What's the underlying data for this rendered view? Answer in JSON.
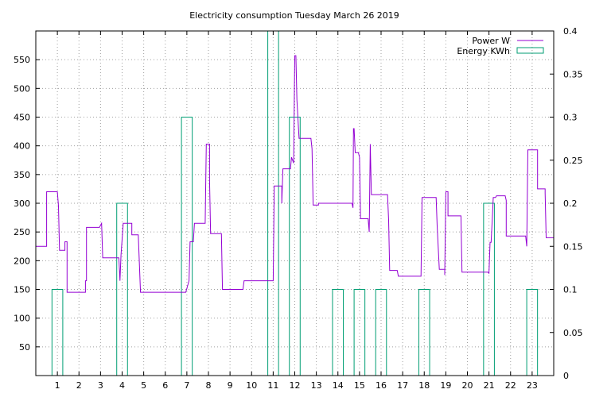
{
  "chart_data": {
    "type": "line",
    "title": "Electricity consumption Tuesday March 26 2019",
    "x_ticks": [
      "1",
      "2",
      "3",
      "4",
      "5",
      "6",
      "7",
      "8",
      "9",
      "10",
      "11",
      "12",
      "13",
      "14",
      "15",
      "16",
      "17",
      "18",
      "19",
      "20",
      "21",
      "22",
      "23"
    ],
    "xlim": [
      0,
      24
    ],
    "y_left": {
      "ylim": [
        0,
        600
      ],
      "ticks": [
        50,
        100,
        150,
        200,
        250,
        300,
        350,
        400,
        450,
        500,
        550
      ]
    },
    "y_right": {
      "ylim": [
        0,
        0.4
      ],
      "ticks": [
        "0",
        "0.05",
        "0.1",
        "0.15",
        "0.2",
        "0.25",
        "0.3",
        "0.35",
        "0.4"
      ]
    },
    "grid": true,
    "legend_position": "top-right",
    "colors": {
      "power": "#9400d3",
      "energy": "#009e73"
    },
    "series": [
      {
        "name": "Power W",
        "axis": "left",
        "style": "step-line",
        "points": [
          [
            0,
            225
          ],
          [
            0.5,
            225
          ],
          [
            0.5,
            320
          ],
          [
            1.0,
            320
          ],
          [
            1.05,
            295
          ],
          [
            1.1,
            218
          ],
          [
            1.35,
            218
          ],
          [
            1.35,
            233
          ],
          [
            1.45,
            233
          ],
          [
            1.45,
            145
          ],
          [
            2.3,
            145
          ],
          [
            2.3,
            165
          ],
          [
            2.35,
            165
          ],
          [
            2.35,
            258
          ],
          [
            2.95,
            258
          ],
          [
            3.05,
            265
          ],
          [
            3.1,
            205
          ],
          [
            3.85,
            205
          ],
          [
            3.9,
            165
          ],
          [
            3.95,
            210
          ],
          [
            4.05,
            265
          ],
          [
            4.45,
            265
          ],
          [
            4.45,
            245
          ],
          [
            4.75,
            245
          ],
          [
            4.85,
            145
          ],
          [
            6.95,
            145
          ],
          [
            7.1,
            165
          ],
          [
            7.15,
            233
          ],
          [
            7.3,
            233
          ],
          [
            7.35,
            265
          ],
          [
            7.85,
            265
          ],
          [
            7.9,
            403
          ],
          [
            8.05,
            403
          ],
          [
            8.05,
            340
          ],
          [
            8.1,
            247
          ],
          [
            8.6,
            247
          ],
          [
            8.65,
            150
          ],
          [
            9.6,
            150
          ],
          [
            9.65,
            165
          ],
          [
            11.0,
            165
          ],
          [
            11.05,
            330
          ],
          [
            11.4,
            330
          ],
          [
            11.4,
            300
          ],
          [
            11.45,
            360
          ],
          [
            11.8,
            360
          ],
          [
            11.85,
            380
          ],
          [
            11.95,
            370
          ],
          [
            12.0,
            557
          ],
          [
            12.05,
            557
          ],
          [
            12.1,
            480
          ],
          [
            12.2,
            413
          ],
          [
            12.75,
            413
          ],
          [
            12.8,
            395
          ],
          [
            12.85,
            297
          ],
          [
            13.1,
            297
          ],
          [
            13.1,
            300
          ],
          [
            14.65,
            300
          ],
          [
            14.7,
            292
          ],
          [
            14.72,
            430
          ],
          [
            14.75,
            430
          ],
          [
            14.8,
            388
          ],
          [
            14.95,
            388
          ],
          [
            15.0,
            380
          ],
          [
            15.05,
            273
          ],
          [
            15.4,
            273
          ],
          [
            15.45,
            250
          ],
          [
            15.5,
            403
          ],
          [
            15.55,
            315
          ],
          [
            16.3,
            315
          ],
          [
            16.35,
            270
          ],
          [
            16.4,
            183
          ],
          [
            16.75,
            183
          ],
          [
            16.8,
            173
          ],
          [
            17.85,
            173
          ],
          [
            17.9,
            310
          ],
          [
            18.55,
            310
          ],
          [
            18.6,
            260
          ],
          [
            18.7,
            185
          ],
          [
            18.95,
            185
          ],
          [
            18.95,
            175
          ],
          [
            19.0,
            320
          ],
          [
            19.1,
            320
          ],
          [
            19.1,
            278
          ],
          [
            19.7,
            278
          ],
          [
            19.75,
            180
          ],
          [
            20.95,
            180
          ],
          [
            21.0,
            178
          ],
          [
            21.05,
            232
          ],
          [
            21.1,
            232
          ],
          [
            21.15,
            270
          ],
          [
            21.2,
            310
          ],
          [
            21.3,
            310
          ],
          [
            21.35,
            313
          ],
          [
            21.75,
            313
          ],
          [
            21.8,
            305
          ],
          [
            21.8,
            243
          ],
          [
            22.7,
            243
          ],
          [
            22.75,
            225
          ],
          [
            22.8,
            393
          ],
          [
            23.25,
            393
          ],
          [
            23.25,
            325
          ],
          [
            23.6,
            325
          ],
          [
            23.6,
            318
          ],
          [
            23.65,
            240
          ],
          [
            24.0,
            240
          ]
        ]
      },
      {
        "name": "Energy KWh",
        "axis": "right",
        "style": "histogram-boxes",
        "bars": [
          {
            "x": 1.0,
            "value": 0.1
          },
          {
            "x": 4.0,
            "value": 0.2
          },
          {
            "x": 7.0,
            "value": 0.3
          },
          {
            "x": 11.0,
            "value": 0.4
          },
          {
            "x": 12.0,
            "value": 0.3
          },
          {
            "x": 14.0,
            "value": 0.1
          },
          {
            "x": 15.0,
            "value": 0.1
          },
          {
            "x": 16.0,
            "value": 0.1
          },
          {
            "x": 18.0,
            "value": 0.1
          },
          {
            "x": 21.0,
            "value": 0.2
          },
          {
            "x": 23.0,
            "value": 0.1
          }
        ],
        "bar_width": 0.5
      }
    ]
  }
}
